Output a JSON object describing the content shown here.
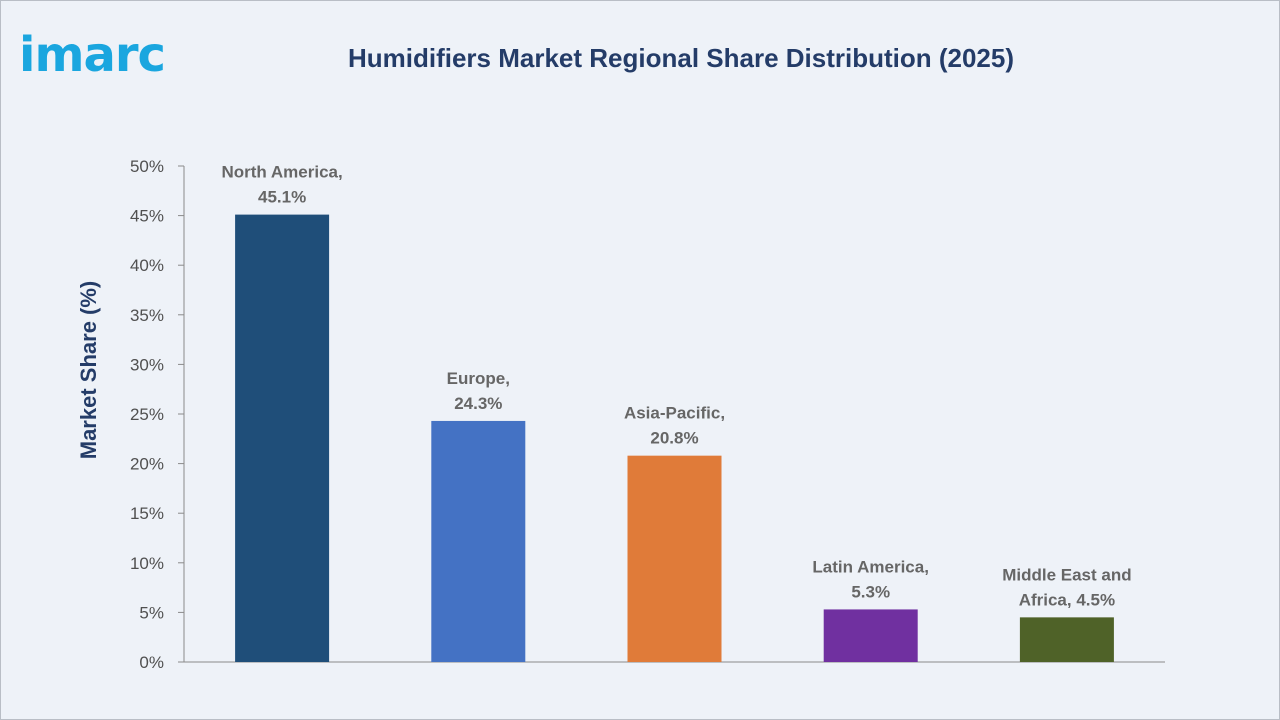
{
  "brand": {
    "logo_text": "imarc"
  },
  "chart_data": {
    "type": "bar",
    "title": "Humidifiers Market Regional Share Distribution (2025)",
    "xlabel": "",
    "ylabel": "Market Share (%)",
    "ylim": [
      0,
      50
    ],
    "yticks": [
      "0%",
      "5%",
      "10%",
      "15%",
      "20%",
      "25%",
      "30%",
      "35%",
      "40%",
      "45%",
      "50%"
    ],
    "grid": false,
    "categories": [
      "North America",
      "Europe",
      "Asia-Pacific",
      "Latin America",
      "Middle East and Africa"
    ],
    "values": [
      45.1,
      24.3,
      20.8,
      5.3,
      4.5
    ],
    "data_labels": [
      [
        "North America,",
        "45.1%"
      ],
      [
        "Europe,",
        "24.3%"
      ],
      [
        "Asia-Pacific,",
        "20.8%"
      ],
      [
        "Latin America,",
        "5.3%"
      ],
      [
        "Middle East and",
        "Africa, 4.5%"
      ]
    ],
    "colors": [
      "#1f4e79",
      "#4472c4",
      "#e07b39",
      "#7030a0",
      "#4f6228"
    ]
  }
}
